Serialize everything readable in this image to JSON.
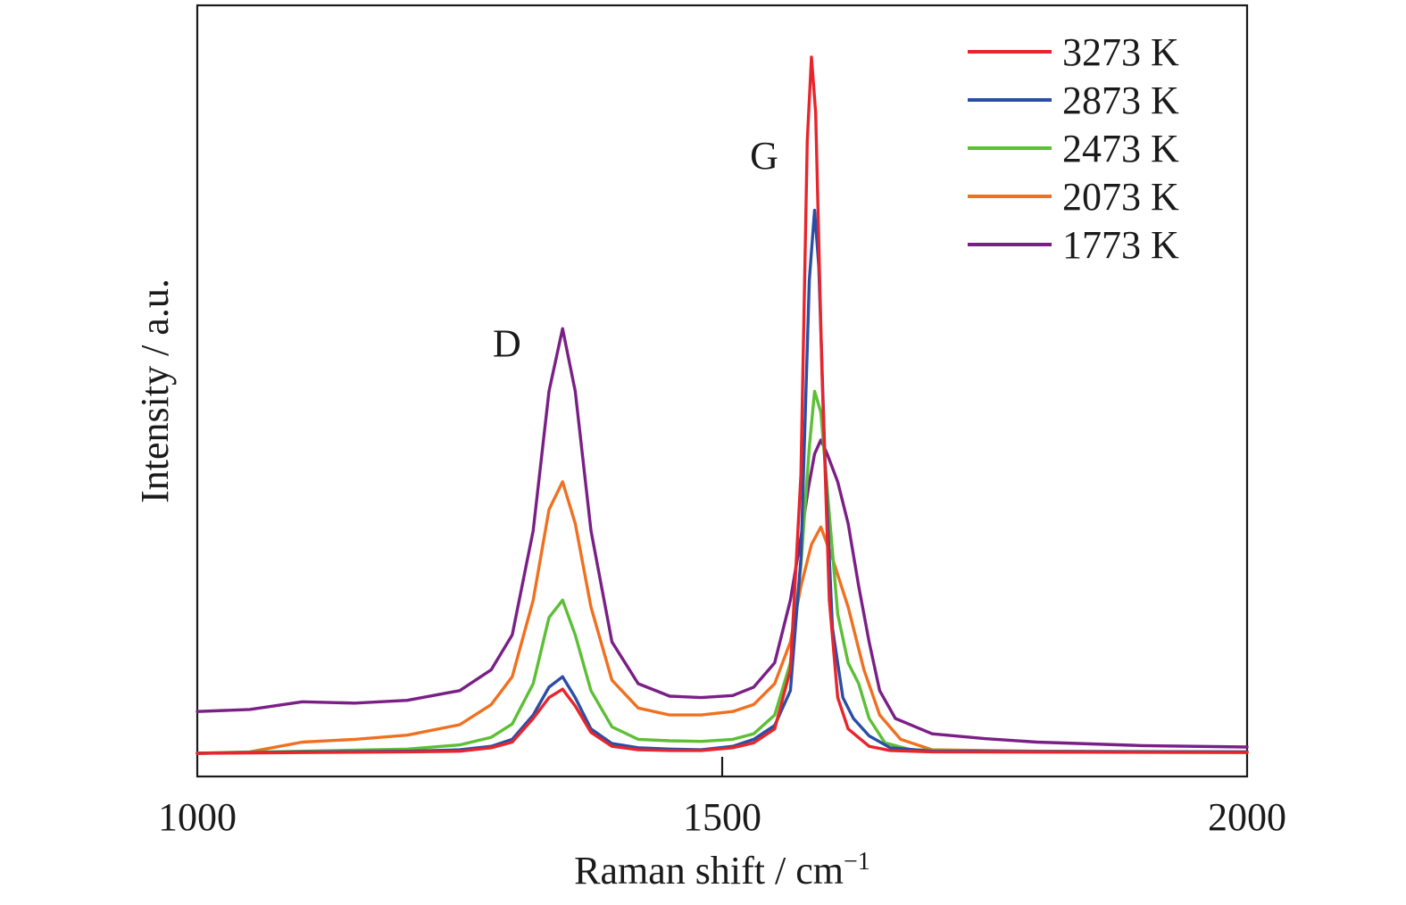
{
  "chart_data": {
    "type": "line",
    "xlabel": "Raman shift / cm",
    "xlabel_sup": "−1",
    "ylabel": "Intensity / a.u.",
    "xlim": [
      1000,
      2000
    ],
    "ylim": [
      0,
      100
    ],
    "xticks": [
      {
        "value": 1000,
        "label": "1000"
      },
      {
        "value": 1500,
        "label": "1500"
      },
      {
        "value": 2000,
        "label": "2000"
      }
    ],
    "grid": false,
    "legend_position": "top-right",
    "annotations": [
      {
        "text": "D",
        "x": 1295,
        "y": 57
      },
      {
        "text": "G",
        "x": 1540,
        "y": 84
      }
    ],
    "series": [
      {
        "name": "1773 K",
        "color": "#7a1f86",
        "points": [
          [
            1000,
            6.0
          ],
          [
            1050,
            6.3
          ],
          [
            1100,
            7.4
          ],
          [
            1150,
            7.2
          ],
          [
            1200,
            7.6
          ],
          [
            1250,
            9.0
          ],
          [
            1280,
            12.0
          ],
          [
            1300,
            17.0
          ],
          [
            1320,
            32.0
          ],
          [
            1335,
            52.0
          ],
          [
            1348,
            61.0
          ],
          [
            1360,
            52.0
          ],
          [
            1375,
            32.0
          ],
          [
            1395,
            16.0
          ],
          [
            1420,
            10.0
          ],
          [
            1450,
            8.2
          ],
          [
            1480,
            8.0
          ],
          [
            1510,
            8.3
          ],
          [
            1530,
            9.5
          ],
          [
            1550,
            13.0
          ],
          [
            1565,
            22.0
          ],
          [
            1575,
            31.0
          ],
          [
            1582,
            38.0
          ],
          [
            1588,
            43.0
          ],
          [
            1594,
            45.0
          ],
          [
            1600,
            43.0
          ],
          [
            1610,
            39.0
          ],
          [
            1620,
            33.0
          ],
          [
            1630,
            24.0
          ],
          [
            1640,
            16.0
          ],
          [
            1650,
            9.0
          ],
          [
            1665,
            5.0
          ],
          [
            1700,
            2.8
          ],
          [
            1750,
            2.1
          ],
          [
            1800,
            1.6
          ],
          [
            1900,
            1.1
          ],
          [
            2000,
            0.9
          ]
        ]
      },
      {
        "name": "2073 K",
        "color": "#f07020",
        "points": [
          [
            1000,
            0.0
          ],
          [
            1050,
            0.2
          ],
          [
            1100,
            1.6
          ],
          [
            1150,
            2.0
          ],
          [
            1200,
            2.6
          ],
          [
            1250,
            4.1
          ],
          [
            1280,
            7.0
          ],
          [
            1300,
            11.0
          ],
          [
            1320,
            22.0
          ],
          [
            1335,
            35.0
          ],
          [
            1348,
            39.0
          ],
          [
            1360,
            33.0
          ],
          [
            1375,
            21.0
          ],
          [
            1395,
            10.5
          ],
          [
            1420,
            6.5
          ],
          [
            1450,
            5.5
          ],
          [
            1480,
            5.5
          ],
          [
            1510,
            6.0
          ],
          [
            1530,
            7.0
          ],
          [
            1550,
            10.0
          ],
          [
            1565,
            16.0
          ],
          [
            1575,
            24.0
          ],
          [
            1585,
            30.0
          ],
          [
            1594,
            32.5
          ],
          [
            1605,
            28.0
          ],
          [
            1620,
            21.0
          ],
          [
            1635,
            12.0
          ],
          [
            1650,
            5.5
          ],
          [
            1670,
            2.0
          ],
          [
            1700,
            0.5
          ],
          [
            1800,
            0.3
          ],
          [
            1900,
            0.2
          ],
          [
            2000,
            0.2
          ]
        ]
      },
      {
        "name": "2473 K",
        "color": "#5cbf35",
        "points": [
          [
            1000,
            0.0
          ],
          [
            1100,
            0.3
          ],
          [
            1200,
            0.6
          ],
          [
            1250,
            1.2
          ],
          [
            1280,
            2.3
          ],
          [
            1300,
            4.2
          ],
          [
            1320,
            10.0
          ],
          [
            1335,
            19.5
          ],
          [
            1348,
            22.0
          ],
          [
            1360,
            17.0
          ],
          [
            1375,
            9.0
          ],
          [
            1395,
            3.8
          ],
          [
            1420,
            2.0
          ],
          [
            1450,
            1.8
          ],
          [
            1480,
            1.7
          ],
          [
            1510,
            2.0
          ],
          [
            1530,
            2.8
          ],
          [
            1550,
            5.5
          ],
          [
            1565,
            13.0
          ],
          [
            1575,
            27.0
          ],
          [
            1583,
            44.0
          ],
          [
            1588,
            52.0
          ],
          [
            1594,
            49.0
          ],
          [
            1600,
            38.0
          ],
          [
            1610,
            20.0
          ],
          [
            1620,
            13.0
          ],
          [
            1630,
            10.0
          ],
          [
            1640,
            5.0
          ],
          [
            1655,
            1.5
          ],
          [
            1680,
            0.5
          ],
          [
            1750,
            0.3
          ],
          [
            2000,
            0.2
          ]
        ]
      },
      {
        "name": "2873 K",
        "color": "#2a4ea6",
        "points": [
          [
            1000,
            0.0
          ],
          [
            1100,
            0.2
          ],
          [
            1200,
            0.3
          ],
          [
            1250,
            0.5
          ],
          [
            1280,
            1.0
          ],
          [
            1300,
            2.0
          ],
          [
            1320,
            5.5
          ],
          [
            1335,
            9.5
          ],
          [
            1348,
            11.0
          ],
          [
            1360,
            8.0
          ],
          [
            1375,
            3.5
          ],
          [
            1395,
            1.4
          ],
          [
            1420,
            0.8
          ],
          [
            1450,
            0.6
          ],
          [
            1480,
            0.5
          ],
          [
            1510,
            1.0
          ],
          [
            1530,
            2.0
          ],
          [
            1550,
            4.0
          ],
          [
            1565,
            9.0
          ],
          [
            1575,
            28.0
          ],
          [
            1583,
            68.0
          ],
          [
            1588,
            78.0
          ],
          [
            1592,
            70.0
          ],
          [
            1598,
            42.0
          ],
          [
            1605,
            18.0
          ],
          [
            1615,
            8.0
          ],
          [
            1625,
            5.0
          ],
          [
            1640,
            2.5
          ],
          [
            1660,
            0.8
          ],
          [
            1700,
            0.3
          ],
          [
            2000,
            0.2
          ]
        ]
      },
      {
        "name": "3273 K",
        "color": "#e8242c",
        "points": [
          [
            1000,
            0.0
          ],
          [
            1100,
            0.1
          ],
          [
            1200,
            0.2
          ],
          [
            1250,
            0.3
          ],
          [
            1280,
            0.8
          ],
          [
            1300,
            1.6
          ],
          [
            1320,
            5.0
          ],
          [
            1335,
            8.0
          ],
          [
            1348,
            9.2
          ],
          [
            1360,
            6.8
          ],
          [
            1375,
            3.0
          ],
          [
            1395,
            1.0
          ],
          [
            1420,
            0.5
          ],
          [
            1450,
            0.4
          ],
          [
            1480,
            0.4
          ],
          [
            1510,
            0.8
          ],
          [
            1530,
            1.5
          ],
          [
            1550,
            3.5
          ],
          [
            1565,
            12.0
          ],
          [
            1575,
            40.0
          ],
          [
            1581,
            88.0
          ],
          [
            1585,
            100.0
          ],
          [
            1589,
            92.0
          ],
          [
            1595,
            55.0
          ],
          [
            1602,
            22.0
          ],
          [
            1610,
            8.0
          ],
          [
            1620,
            3.5
          ],
          [
            1640,
            1.0
          ],
          [
            1660,
            0.4
          ],
          [
            1700,
            0.2
          ],
          [
            2000,
            0.1
          ]
        ]
      }
    ],
    "legend_order": [
      "3273 K",
      "2873 K",
      "2473 K",
      "2073 K",
      "1773 K"
    ]
  }
}
